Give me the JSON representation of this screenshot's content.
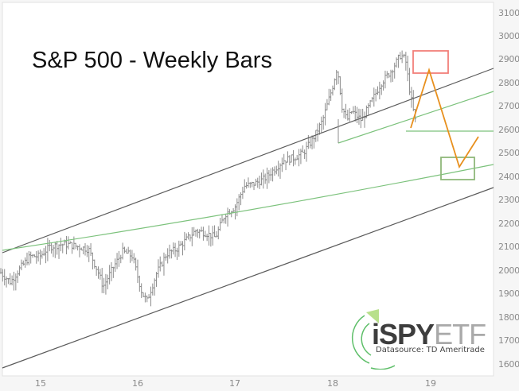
{
  "chart_data": {
    "type": "line",
    "subtype": "ohlc-weekly-bars-with-trendlines",
    "title": "S&P 500 - Weekly Bars",
    "xlabel": "",
    "ylabel": "",
    "x_ticks": [
      "15",
      "16",
      "17",
      "18",
      "19"
    ],
    "y_ticks": [
      3100,
      3000,
      2900,
      2800,
      2700,
      2600,
      2500,
      2400,
      2300,
      2200,
      2100,
      2000,
      1900,
      1800,
      1700,
      1600
    ],
    "ylim": [
      1550,
      3150
    ],
    "xlim": [
      2014.55,
      2019.6
    ],
    "y_axis_position": "right",
    "grid": false,
    "legend": null,
    "series": [
      {
        "name": "S&P 500 weekly close (approx.)",
        "x": [
          2014.6,
          2014.7,
          2014.8,
          2014.9,
          2015.0,
          2015.1,
          2015.2,
          2015.3,
          2015.4,
          2015.5,
          2015.6,
          2015.65,
          2015.75,
          2015.85,
          2015.95,
          2016.05,
          2016.1,
          2016.2,
          2016.3,
          2016.4,
          2016.5,
          2016.6,
          2016.7,
          2016.8,
          2016.9,
          2017.0,
          2017.1,
          2017.2,
          2017.3,
          2017.4,
          2017.5,
          2017.6,
          2017.7,
          2017.8,
          2017.9,
          2018.0,
          2018.05,
          2018.1,
          2018.15,
          2018.2,
          2018.3,
          2018.4,
          2018.5,
          2018.6,
          2018.7,
          2018.75,
          2018.8,
          2018.85
        ],
        "values": [
          1990,
          1950,
          2010,
          2060,
          2060,
          2100,
          2110,
          2110,
          2100,
          2090,
          1990,
          1930,
          2010,
          2080,
          2060,
          1900,
          1870,
          1990,
          2070,
          2090,
          2130,
          2170,
          2160,
          2140,
          2240,
          2270,
          2360,
          2370,
          2390,
          2430,
          2470,
          2480,
          2500,
          2560,
          2640,
          2780,
          2870,
          2700,
          2640,
          2680,
          2640,
          2720,
          2800,
          2850,
          2920,
          2900,
          2750,
          2640
        ]
      },
      {
        "name": "Projection path (orange)",
        "x": [
          2018.8,
          2018.98,
          2019.3,
          2019.5
        ],
        "values": [
          2610,
          2850,
          2430,
          2560
        ]
      }
    ],
    "annotations": [
      {
        "type": "rect",
        "color": "#f08080",
        "label": "target zone top",
        "y_range": [
          2830,
          2930
        ],
        "x_range": [
          2018.83,
          2019.2
        ]
      },
      {
        "type": "rect",
        "color": "#8fb87a",
        "label": "target zone bottom",
        "y_range": [
          2380,
          2480
        ],
        "x_range": [
          2019.11,
          2019.46
        ]
      },
      {
        "type": "hline",
        "color": "#7cc27c",
        "y": 2590,
        "label": "support line"
      },
      {
        "type": "trendline",
        "color": "#555555",
        "label": "upper channel line"
      },
      {
        "type": "trendline",
        "color": "#555555",
        "label": "lower channel line"
      },
      {
        "type": "trendline",
        "color": "#7cc27c",
        "label": "long-term green curve"
      },
      {
        "type": "trendline",
        "color": "#7cc27c",
        "label": "2018 lows green trendline"
      }
    ]
  },
  "chart": {
    "title": "S&P 500 - Weekly Bars",
    "y_labels": [
      "3100",
      "3000",
      "2900",
      "2800",
      "2700",
      "2600",
      "2500",
      "2400",
      "2300",
      "2200",
      "2100",
      "2000",
      "1900",
      "1800",
      "1700",
      "1600"
    ],
    "x_labels": [
      "15",
      "16",
      "17",
      "18",
      "19"
    ],
    "colors": {
      "bars": "#8c8c8c",
      "channel": "#5a5a5a",
      "green": "#7cc27c",
      "orange": "#e8901e",
      "red_box": "#f27f7a",
      "green_box": "#8fb87a"
    }
  },
  "logo": {
    "prefix": "i",
    "spy": "SPY",
    "etf": "ETF",
    "source": "Datasource: TD Ameritrade"
  }
}
